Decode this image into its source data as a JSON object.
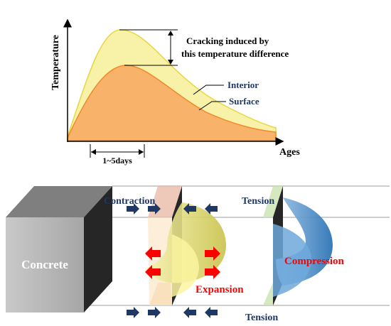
{
  "graph": {
    "y_axis_label": "Temperature",
    "x_axis_label": "Ages",
    "annotation": [
      "Cracking induced by",
      "this temperature difference"
    ],
    "interior_label": "Interior",
    "surface_label": "Surface",
    "duration_label": "1~5days",
    "colors": {
      "interior_fill": "#f7f2a8",
      "interior_stroke": "#e8d640",
      "surface_fill": "#f8b26a",
      "surface_stroke": "#ef8a2a",
      "label_color": "#1f3864"
    }
  },
  "section": {
    "concrete_label": "Concrete",
    "contraction_label": "Contraction",
    "expansion_label": "Expansion",
    "tension_top_label": "Tension",
    "compression_label": "Compression",
    "tension_bottom_label": "Tension",
    "colors": {
      "navy_arrow": "#1f3864",
      "red_arrow": "#ff0000",
      "yellow_profile": "#f1f07a",
      "blue_profile": "#5b9bd5",
      "block_front": "#bfbfbf",
      "block_top": "#7f7f7f",
      "block_side": "#262626"
    }
  }
}
